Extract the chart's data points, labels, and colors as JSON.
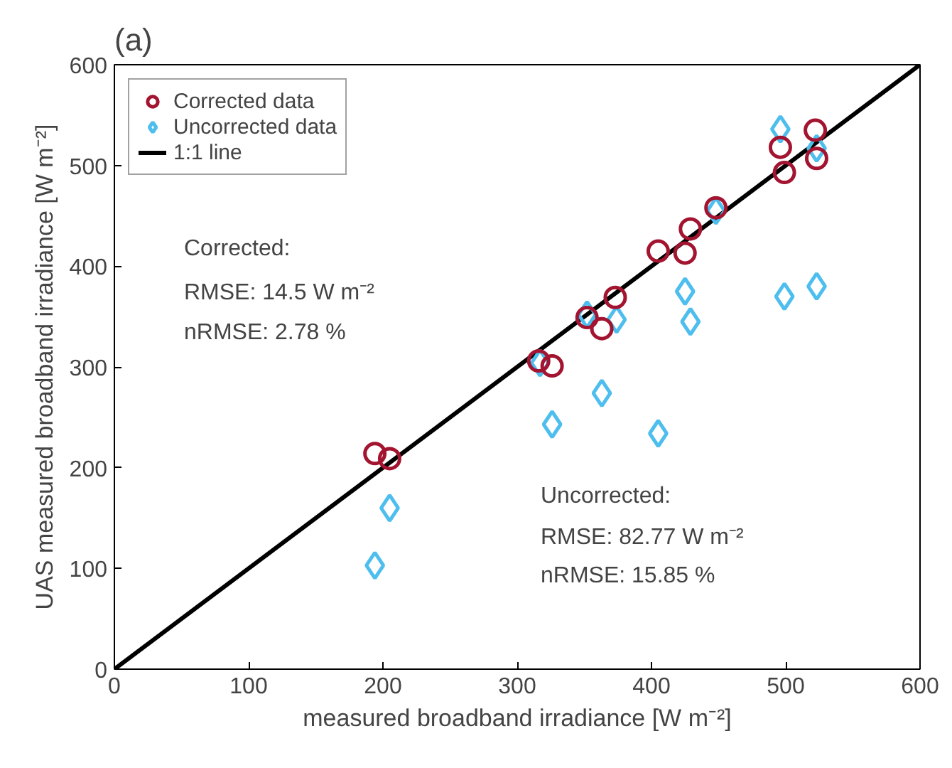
{
  "chart_data": {
    "type": "scatter",
    "title": "(a)",
    "xlabel": "measured broadband irradiance [W m⁻²]",
    "ylabel": "UAS measured broadband irradiance [W m⁻²]",
    "series": [
      {
        "name": "Corrected data",
        "marker": "circle",
        "color": "#a2142f",
        "x": [
          194,
          205,
          316,
          326,
          352,
          363,
          373,
          405,
          425,
          429,
          448,
          496,
          499,
          522,
          523
        ],
        "values": [
          214,
          209,
          306,
          301,
          349,
          338,
          369,
          415,
          413,
          437,
          458,
          518,
          493,
          535,
          507
        ]
      },
      {
        "name": "Uncorrected data",
        "marker": "diamond",
        "color": "#4dbeee",
        "x": [
          194,
          205,
          317,
          326,
          352,
          363,
          374,
          405,
          425,
          429,
          448,
          496,
          499,
          523,
          523
        ],
        "values": [
          103,
          160,
          304,
          243,
          352,
          274,
          347,
          234,
          375,
          345,
          455,
          536,
          370,
          517,
          380
        ]
      },
      {
        "name": "1:1 line",
        "type": "line",
        "color": "#000000",
        "x": [
          0,
          600
        ],
        "values": [
          0,
          600
        ]
      }
    ],
    "annotations": [
      "Corrected:",
      "RMSE: 14.5 W m⁻²",
      "nRMSE: 2.78 %",
      "Uncorrected:",
      "RMSE: 82.77 W m⁻²",
      "nRMSE: 15.85 %"
    ],
    "xlim": [
      0,
      600
    ],
    "ylim": [
      0,
      600
    ],
    "xticks": [
      0,
      100,
      200,
      300,
      400,
      500,
      600
    ],
    "yticks": [
      0,
      100,
      200,
      300,
      400,
      500,
      600
    ],
    "grid": false,
    "legend": "top left"
  }
}
